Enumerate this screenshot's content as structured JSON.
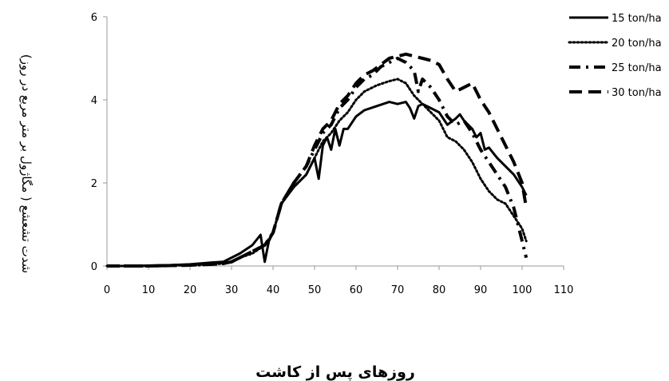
{
  "chart_data": {
    "type": "line",
    "xlabel": "روزهای پس از کاشت",
    "ylabel": "شدت تشعشع ( مگاژول بر متر مربع در روز)",
    "xlim": [
      0,
      110
    ],
    "ylim": [
      0,
      6
    ],
    "x_ticks": [
      "0",
      "10",
      "20",
      "30",
      "40",
      "50",
      "60",
      "70",
      "80",
      "90",
      "100",
      "110"
    ],
    "y_ticks": [
      "0",
      "2",
      "4",
      "6"
    ],
    "grid": false,
    "legend_position": "top-right",
    "series": [
      {
        "name": "15 ton/ha",
        "style": "solid",
        "x": [
          0,
          5,
          10,
          15,
          20,
          25,
          28,
          30,
          32,
          35,
          37,
          38,
          39,
          40,
          42,
          45,
          48,
          50,
          51,
          52,
          53,
          54,
          55,
          56,
          57,
          58,
          60,
          62,
          65,
          68,
          70,
          72,
          73,
          74,
          75,
          76,
          78,
          80,
          82,
          84,
          85,
          86,
          88,
          89,
          90,
          91,
          92,
          94,
          96,
          98,
          100,
          101
        ],
        "y": [
          0,
          0,
          0.01,
          0.02,
          0.04,
          0.08,
          0.1,
          0.2,
          0.3,
          0.5,
          0.75,
          0.1,
          0.6,
          0.8,
          1.5,
          1.9,
          2.2,
          2.6,
          2.1,
          2.9,
          3.1,
          2.8,
          3.3,
          2.9,
          3.3,
          3.3,
          3.6,
          3.75,
          3.85,
          3.95,
          3.9,
          3.95,
          3.8,
          3.55,
          3.85,
          3.9,
          3.8,
          3.7,
          3.4,
          3.55,
          3.65,
          3.5,
          3.3,
          3.1,
          3.2,
          2.8,
          2.85,
          2.6,
          2.4,
          2.2,
          1.9,
          1.7
        ]
      },
      {
        "name": "20 ton/ha",
        "style": "dotted",
        "x": [
          0,
          5,
          10,
          15,
          20,
          25,
          28,
          30,
          32,
          35,
          38,
          40,
          42,
          45,
          48,
          50,
          52,
          54,
          56,
          58,
          60,
          62,
          65,
          68,
          70,
          72,
          74,
          76,
          78,
          80,
          82,
          84,
          86,
          88,
          90,
          92,
          94,
          96,
          98,
          100,
          101
        ],
        "y": [
          0,
          0,
          0,
          0.01,
          0.02,
          0.04,
          0.06,
          0.1,
          0.2,
          0.3,
          0.5,
          0.8,
          1.5,
          1.9,
          2.2,
          2.6,
          3.0,
          3.2,
          3.5,
          3.7,
          4.0,
          4.2,
          4.35,
          4.45,
          4.5,
          4.4,
          4.1,
          3.9,
          3.7,
          3.5,
          3.1,
          3.0,
          2.8,
          2.5,
          2.1,
          1.8,
          1.6,
          1.5,
          1.2,
          0.9,
          0.6
        ]
      },
      {
        "name": "25 ton/ha",
        "style": "dashdot",
        "x": [
          0,
          5,
          10,
          15,
          20,
          25,
          28,
          30,
          33,
          36,
          38,
          40,
          42,
          45,
          48,
          50,
          52,
          54,
          56,
          58,
          60,
          62,
          64,
          66,
          68,
          70,
          72,
          74,
          75,
          76,
          78,
          80,
          82,
          84,
          86,
          88,
          90,
          92,
          94,
          96,
          98,
          100,
          101
        ],
        "y": [
          0,
          0,
          0,
          0.01,
          0.02,
          0.04,
          0.06,
          0.1,
          0.25,
          0.4,
          0.5,
          0.8,
          1.5,
          2.0,
          2.4,
          2.8,
          3.2,
          3.4,
          3.8,
          4.0,
          4.3,
          4.5,
          4.6,
          4.8,
          4.9,
          5.0,
          4.9,
          4.7,
          4.2,
          4.5,
          4.3,
          4.0,
          3.6,
          3.4,
          3.5,
          3.2,
          2.8,
          2.5,
          2.2,
          1.9,
          1.4,
          0.6,
          0.2
        ]
      },
      {
        "name": "30 ton/ha",
        "style": "longdash",
        "x": [
          0,
          5,
          10,
          15,
          20,
          25,
          28,
          30,
          33,
          36,
          38,
          40,
          42,
          45,
          48,
          50,
          52,
          54,
          56,
          58,
          60,
          62,
          64,
          66,
          68,
          70,
          72,
          74,
          76,
          78,
          80,
          82,
          84,
          86,
          88,
          90,
          92,
          94,
          96,
          98,
          100,
          101
        ],
        "y": [
          0,
          0,
          0,
          0.01,
          0.02,
          0.04,
          0.06,
          0.1,
          0.25,
          0.4,
          0.5,
          0.8,
          1.5,
          2.0,
          2.4,
          2.9,
          3.3,
          3.5,
          3.9,
          4.1,
          4.4,
          4.6,
          4.7,
          4.85,
          5.0,
          5.05,
          5.1,
          5.05,
          5.0,
          4.95,
          4.85,
          4.5,
          4.2,
          4.3,
          4.4,
          4.0,
          3.7,
          3.3,
          2.9,
          2.5,
          2.0,
          1.4
        ]
      }
    ]
  }
}
